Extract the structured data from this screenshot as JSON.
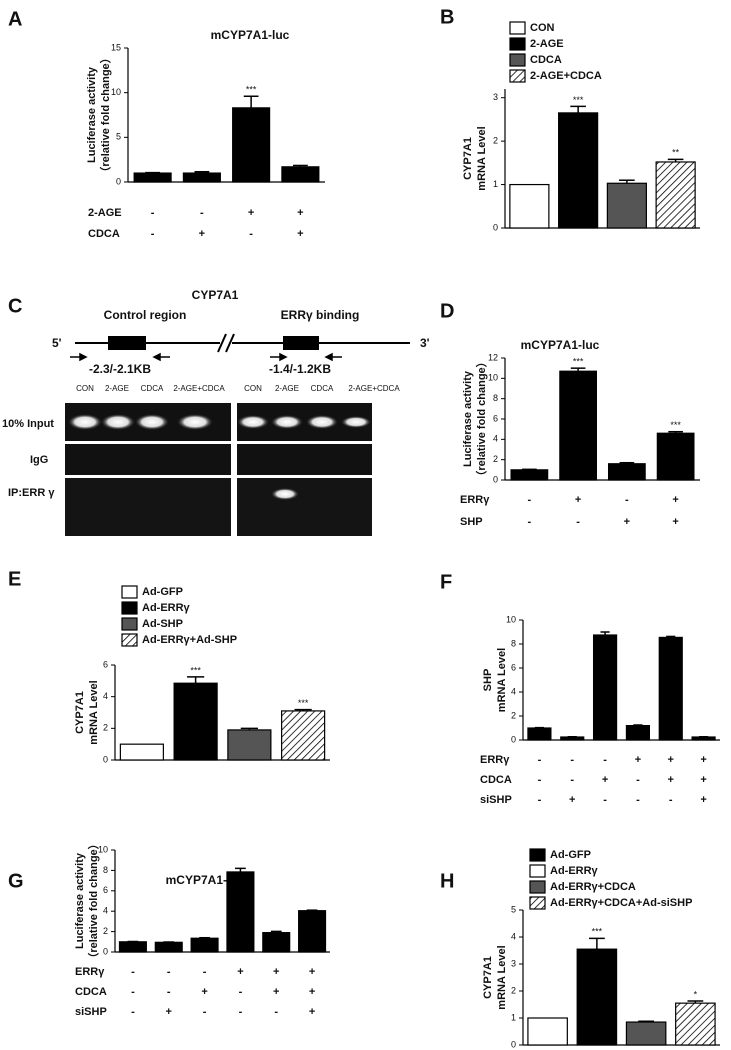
{
  "chart_data": [
    {
      "type": "bar",
      "panel": "A",
      "title": "mCYP7A1-luc",
      "ylabel": [
        "Luciferase activity",
        "（relative fold change）"
      ],
      "ylim": [
        0,
        15
      ],
      "yticks": [
        0,
        5,
        10,
        15
      ],
      "color": "#000000",
      "values": [
        1,
        1,
        8.3,
        1.7
      ],
      "errors": [
        0.05,
        0.15,
        1.3,
        0.15
      ],
      "annotations": [
        null,
        null,
        "***",
        null
      ],
      "conditions": [
        {
          "name": "2-AGE",
          "signs": [
            "-",
            "-",
            "+",
            "+"
          ]
        },
        {
          "name": "CDCA",
          "signs": [
            "-",
            "+",
            "-",
            "+"
          ]
        }
      ]
    },
    {
      "type": "bar",
      "panel": "B",
      "ylabel": [
        "CYP7A1",
        "mRNA Level"
      ],
      "ylim": [
        0,
        3.2
      ],
      "yticks": [
        0,
        1,
        2,
        3
      ],
      "series": [
        {
          "name": "CON",
          "color": "#ffffff",
          "values": [
            1
          ],
          "errors": [
            0
          ],
          "annotations": [
            null
          ]
        },
        {
          "name": "2-AGE",
          "color": "#000000",
          "values": [
            2.65
          ],
          "errors": [
            0.15
          ],
          "annotations": [
            "***"
          ]
        },
        {
          "name": "CDCA",
          "color": "#555555",
          "values": [
            1.03
          ],
          "errors": [
            0.07
          ],
          "annotations": [
            null
          ]
        },
        {
          "name": "2-AGE+CDCA",
          "color": "#ffffff",
          "hatch": true,
          "values": [
            1.52
          ],
          "errors": [
            0.06
          ],
          "annotations": [
            "**"
          ]
        }
      ]
    },
    {
      "type": "bar",
      "panel": "D",
      "title": "mCYP7A1-luc",
      "ylabel": [
        "Luciferase activity",
        "（relative fold change）"
      ],
      "ylim": [
        0,
        12
      ],
      "yticks": [
        0,
        2,
        4,
        6,
        8,
        10,
        12
      ],
      "color": "#000000",
      "values": [
        1,
        10.7,
        1.6,
        4.6
      ],
      "errors": [
        0.05,
        0.3,
        0.1,
        0.15
      ],
      "annotations": [
        null,
        "***",
        null,
        "***"
      ],
      "conditions": [
        {
          "name": "ERRγ",
          "signs": [
            "-",
            "+",
            "-",
            "+"
          ]
        },
        {
          "name": "SHP",
          "signs": [
            "-",
            "-",
            "+",
            "+"
          ]
        }
      ]
    },
    {
      "type": "bar",
      "panel": "E",
      "ylabel": [
        "CYP7A1",
        "mRNA Level"
      ],
      "ylim": [
        0,
        6
      ],
      "yticks": [
        0,
        2,
        4,
        6
      ],
      "series": [
        {
          "name": "Ad-GFP",
          "color": "#ffffff",
          "values": [
            1
          ],
          "errors": [
            0
          ],
          "annotations": [
            null
          ]
        },
        {
          "name": "Ad-ERRγ",
          "color": "#000000",
          "values": [
            4.85
          ],
          "errors": [
            0.4
          ],
          "annotations": [
            "***"
          ]
        },
        {
          "name": "Ad-SHP",
          "color": "#555555",
          "values": [
            1.9
          ],
          "errors": [
            0.1
          ],
          "annotations": [
            null
          ]
        },
        {
          "name": "Ad-ERRγ+Ad-SHP",
          "color": "#ffffff",
          "hatch": true,
          "values": [
            3.1
          ],
          "errors": [
            0.08
          ],
          "annotations": [
            "***"
          ]
        }
      ]
    },
    {
      "type": "bar",
      "panel": "F",
      "ylabel": [
        "SHP",
        "mRNA Level"
      ],
      "ylim": [
        0,
        10
      ],
      "yticks": [
        0,
        2,
        4,
        6,
        8,
        10
      ],
      "color": "#000000",
      "values": [
        1,
        0.25,
        8.75,
        1.2,
        8.55,
        0.25
      ],
      "errors": [
        0.03,
        0.02,
        0.25,
        0.05,
        0.08,
        0.02
      ],
      "conditions": [
        {
          "name": "ERRγ",
          "signs": [
            "-",
            "-",
            "-",
            "+",
            "+",
            "+"
          ]
        },
        {
          "name": "CDCA",
          "signs": [
            "-",
            "-",
            "+",
            "-",
            "+",
            "+"
          ]
        },
        {
          "name": "siSHP",
          "signs": [
            "-",
            "+",
            "-",
            "-",
            "-",
            "+"
          ]
        }
      ]
    },
    {
      "type": "bar",
      "panel": "G",
      "title": "mCYP7A1-luc",
      "ylabel": [
        "Luciferase activity",
        "（relative fold change）"
      ],
      "ylim": [
        0,
        10
      ],
      "yticks": [
        0,
        2,
        4,
        6,
        8,
        10
      ],
      "color": "#000000",
      "values": [
        1,
        0.95,
        1.35,
        7.85,
        1.9,
        4.05
      ],
      "errors": [
        0.03,
        0.03,
        0.05,
        0.35,
        0.12,
        0.05
      ],
      "conditions": [
        {
          "name": "ERRγ",
          "signs": [
            "-",
            "-",
            "-",
            "+",
            "+",
            "+"
          ]
        },
        {
          "name": "CDCA",
          "signs": [
            "-",
            "-",
            "+",
            "-",
            "+",
            "+"
          ]
        },
        {
          "name": "siSHP",
          "signs": [
            "-",
            "+",
            "-",
            "-",
            "-",
            "+"
          ]
        }
      ]
    },
    {
      "type": "bar",
      "panel": "H",
      "ylabel": [
        "CYP7A1",
        "mRNA Level"
      ],
      "ylim": [
        0,
        5
      ],
      "yticks": [
        0,
        1,
        2,
        3,
        4,
        5
      ],
      "series": [
        {
          "name": "Ad-GFP",
          "color": "#ffffff",
          "legend_color": "#000000",
          "values": [
            1
          ],
          "errors": [
            0
          ],
          "annotations": [
            null
          ]
        },
        {
          "name": "Ad-ERRγ",
          "color": "#000000",
          "legend_color": "#ffffff",
          "values": [
            3.55
          ],
          "errors": [
            0.4
          ],
          "annotations": [
            "***"
          ]
        },
        {
          "name": "Ad-ERRγ+CDCA",
          "color": "#555555",
          "values": [
            0.85
          ],
          "errors": [
            0.03
          ],
          "annotations": [
            null
          ]
        },
        {
          "name": "Ad-ERRγ+CDCA+Ad-siSHP",
          "color": "#ffffff",
          "hatch": true,
          "values": [
            1.55
          ],
          "errors": [
            0.08
          ],
          "annotations": [
            "*"
          ]
        }
      ]
    }
  ],
  "gel": {
    "panel": "C",
    "title": "CYP7A1",
    "regions": [
      "Control region",
      "ERRγ binding"
    ],
    "ends": [
      "5'",
      "3'"
    ],
    "amplicons": [
      "-2.3/-2.1KB",
      "-1.4/-1.2KB"
    ],
    "lanes": [
      "CON",
      "2-AGE",
      "CDCA",
      "2-AGE+CDCA"
    ],
    "rows": [
      "10% Input",
      "IgG",
      "IP:ERR γ"
    ]
  }
}
